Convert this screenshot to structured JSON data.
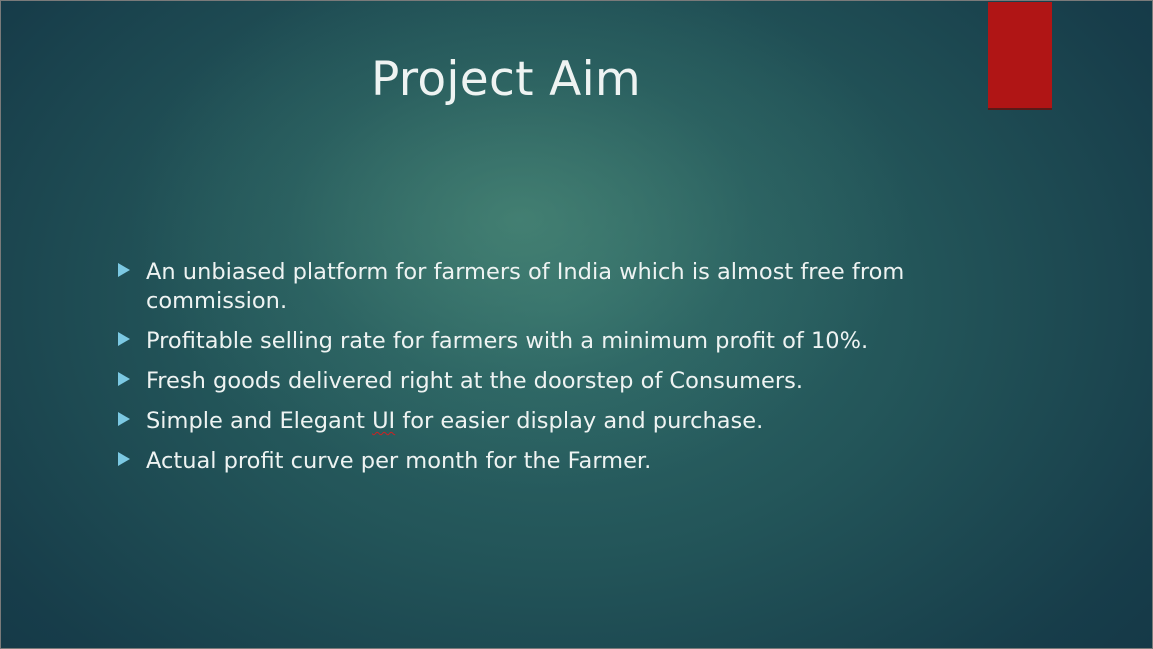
{
  "slide": {
    "title": "Project Aim",
    "bullets": [
      {
        "text": "An unbiased platform for farmers of India which is almost free from commission."
      },
      {
        "text": "Profitable selling rate for farmers with a minimum profit of 10%."
      },
      {
        "text": "Fresh goods delivered right at the doorstep of Consumers."
      },
      {
        "before": "Simple and Elegant ",
        "flagged": "UI",
        "after": " for easier display and purchase."
      },
      {
        "text": "Actual profit curve per month for the Farmer."
      }
    ],
    "bullet_icon": "triangle-right-icon",
    "colors": {
      "accent_tab": "#b01515",
      "bullet": "#7cc9e3",
      "text": "#eef3f2",
      "background": "#235559"
    }
  }
}
